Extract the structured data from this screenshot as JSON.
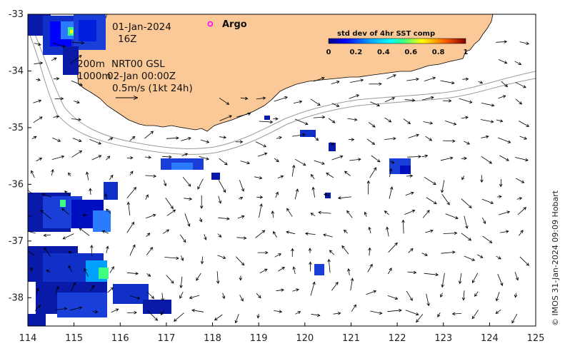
{
  "annotations": {
    "date": "01-Jan-2024",
    "hour": "16Z",
    "contour_200": "200m",
    "contour_1000": "1000m",
    "product": "NRT00 GSL",
    "time": "02-Jan 00:00Z",
    "scale": "0.5m/s (1kt 24h)",
    "argo_label": "Argo"
  },
  "colorbar": {
    "title": "std dev of 4hr SST comp",
    "ticks": [
      "0",
      "0.2",
      "0.4",
      "0.6",
      "0.8",
      "1"
    ],
    "tick_values": [
      0,
      0.2,
      0.4,
      0.6,
      0.8,
      1
    ]
  },
  "axes": {
    "x_ticks": [
      "114",
      "115",
      "116",
      "117",
      "118",
      "119",
      "120",
      "121",
      "122",
      "123",
      "124",
      "125"
    ],
    "x_values": [
      114,
      115,
      116,
      117,
      118,
      119,
      120,
      121,
      122,
      123,
      124,
      125
    ],
    "y_ticks": [
      "-33",
      "-34",
      "-35",
      "-36",
      "-37",
      "-38"
    ],
    "y_values": [
      -33,
      -34,
      -35,
      -36,
      -37,
      -38
    ],
    "xlim": [
      114,
      125
    ],
    "ylim": [
      -38.5,
      -33
    ]
  },
  "argo": {
    "lon": 117.95,
    "lat": -33.17
  },
  "copyright": "© IMOS 31-Jan-2024 09:09 Hobart",
  "colors": {
    "land": "#fbc998",
    "argo": "#ff00ff",
    "contour": "#9a9a9a",
    "vectors": "#000000"
  }
}
